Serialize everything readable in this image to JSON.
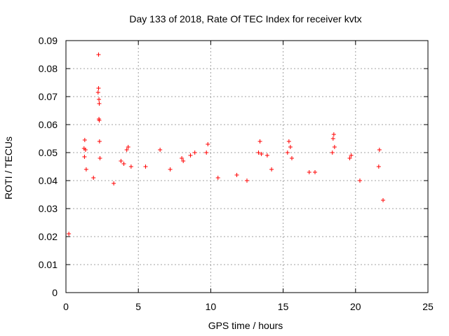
{
  "chart_data": {
    "type": "scatter",
    "title": "Day 133 of 2018, Rate Of TEC Index for receiver kvtx",
    "xlabel": "GPS time / hours",
    "ylabel": "ROTI / TECUs",
    "xlim": [
      0,
      25
    ],
    "ylim": [
      0,
      0.09
    ],
    "xticks": [
      "0",
      "5",
      "10",
      "15",
      "20",
      "25"
    ],
    "yticks": [
      "0",
      "0.01",
      "0.02",
      "0.03",
      "0.04",
      "0.05",
      "0.06",
      "0.07",
      "0.08",
      "0.09"
    ],
    "grid": true,
    "marker": "+",
    "colors": {
      "points": "#ff0000",
      "grid": "#a0a0a0",
      "axes": "#000000"
    },
    "series": [
      {
        "points": [
          [
            2.25,
            0.085
          ],
          [
            2.25,
            0.073
          ],
          [
            2.22,
            0.0715
          ],
          [
            2.28,
            0.069
          ],
          [
            2.3,
            0.0675
          ],
          [
            2.28,
            0.062
          ],
          [
            2.3,
            0.0615
          ],
          [
            2.32,
            0.054
          ],
          [
            2.35,
            0.048
          ],
          [
            1.3,
            0.0545
          ],
          [
            1.25,
            0.0515
          ],
          [
            1.35,
            0.051
          ],
          [
            1.28,
            0.0485
          ],
          [
            1.4,
            0.044
          ],
          [
            4.3,
            0.052
          ],
          [
            4.2,
            0.051
          ],
          [
            3.8,
            0.047
          ],
          [
            4.0,
            0.046
          ],
          [
            4.5,
            0.045
          ],
          [
            6.5,
            0.051
          ],
          [
            8.0,
            0.048
          ],
          [
            8.1,
            0.047
          ],
          [
            8.6,
            0.049
          ],
          [
            8.9,
            0.05
          ],
          [
            9.8,
            0.053
          ],
          [
            9.7,
            0.05
          ],
          [
            13.4,
            0.054
          ],
          [
            13.3,
            0.05
          ],
          [
            13.5,
            0.0495
          ],
          [
            15.4,
            0.054
          ],
          [
            15.5,
            0.052
          ],
          [
            15.3,
            0.05
          ],
          [
            15.6,
            0.048
          ],
          [
            13.9,
            0.049
          ],
          [
            18.5,
            0.0565
          ],
          [
            18.45,
            0.055
          ],
          [
            18.55,
            0.052
          ],
          [
            18.4,
            0.05
          ],
          [
            19.7,
            0.049
          ],
          [
            19.6,
            0.048
          ],
          [
            21.65,
            0.051
          ],
          [
            21.6,
            0.045
          ],
          [
            17.2,
            0.043
          ],
          [
            16.8,
            0.043
          ],
          [
            14.2,
            0.044
          ],
          [
            11.8,
            0.042
          ],
          [
            10.5,
            0.041
          ],
          [
            5.5,
            0.045
          ],
          [
            7.2,
            0.044
          ],
          [
            20.3,
            0.04
          ],
          [
            3.3,
            0.039
          ],
          [
            12.5,
            0.04
          ],
          [
            1.9,
            0.041
          ],
          [
            0.2,
            0.021
          ],
          [
            21.9,
            0.033
          ]
        ]
      }
    ]
  }
}
